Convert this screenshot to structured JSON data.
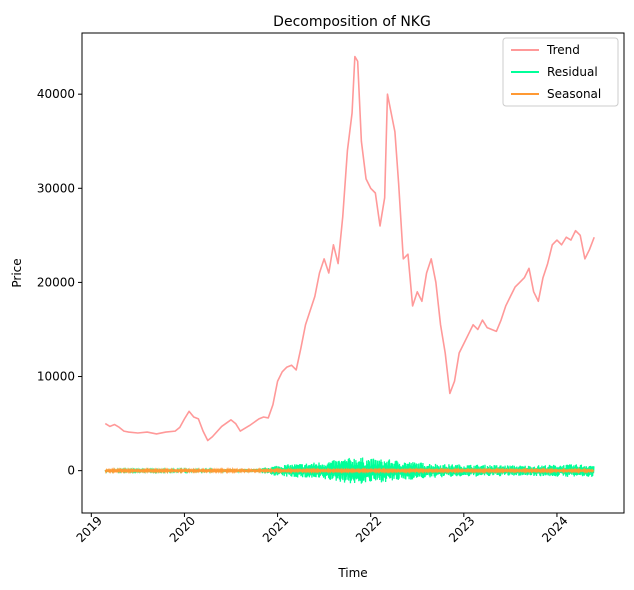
{
  "chart_data": {
    "type": "line",
    "title": "Decomposition of NKG",
    "xlabel": "Time",
    "ylabel": "Price",
    "xlim": [
      2018.9,
      2024.72
    ],
    "ylim": [
      -4500,
      46500
    ],
    "x_ticks": [
      2019,
      2020,
      2021,
      2022,
      2023,
      2024
    ],
    "y_ticks": [
      0,
      10000,
      20000,
      30000,
      40000
    ],
    "grid": false,
    "legend_position": "top-right",
    "series": [
      {
        "name": "Trend",
        "color": "#ff9999",
        "kind": "line",
        "x": [
          2019.15,
          2019.2,
          2019.25,
          2019.3,
          2019.35,
          2019.4,
          2019.5,
          2019.6,
          2019.7,
          2019.8,
          2019.9,
          2019.95,
          2020.0,
          2020.05,
          2020.1,
          2020.15,
          2020.2,
          2020.25,
          2020.3,
          2020.4,
          2020.5,
          2020.55,
          2020.6,
          2020.7,
          2020.8,
          2020.85,
          2020.9,
          2020.95,
          2021.0,
          2021.05,
          2021.1,
          2021.15,
          2021.2,
          2021.25,
          2021.3,
          2021.35,
          2021.4,
          2021.45,
          2021.5,
          2021.55,
          2021.6,
          2021.65,
          2021.7,
          2021.75,
          2021.8,
          2021.83,
          2021.86,
          2021.9,
          2021.95,
          2022.0,
          2022.05,
          2022.1,
          2022.15,
          2022.18,
          2022.22,
          2022.26,
          2022.3,
          2022.35,
          2022.4,
          2022.45,
          2022.5,
          2022.55,
          2022.6,
          2022.65,
          2022.7,
          2022.75,
          2022.8,
          2022.85,
          2022.9,
          2022.95,
          2023.0,
          2023.05,
          2023.1,
          2023.15,
          2023.2,
          2023.25,
          2023.3,
          2023.35,
          2023.4,
          2023.45,
          2023.5,
          2023.55,
          2023.6,
          2023.65,
          2023.7,
          2023.75,
          2023.8,
          2023.85,
          2023.9,
          2023.95,
          2024.0,
          2024.05,
          2024.1,
          2024.15,
          2024.2,
          2024.25,
          2024.3,
          2024.35,
          2024.4
        ],
        "y": [
          5000,
          4700,
          4900,
          4600,
          4200,
          4100,
          4000,
          4100,
          3900,
          4100,
          4200,
          4600,
          5500,
          6300,
          5700,
          5500,
          4200,
          3200,
          3600,
          4700,
          5400,
          5000,
          4200,
          4800,
          5500,
          5700,
          5600,
          7000,
          9500,
          10500,
          11000,
          11200,
          10700,
          13000,
          15500,
          17000,
          18500,
          21000,
          22500,
          21000,
          24000,
          22000,
          27000,
          34000,
          38000,
          44000,
          43500,
          35000,
          31000,
          30000,
          29500,
          26000,
          29000,
          40000,
          38000,
          36000,
          30500,
          22500,
          23000,
          17500,
          19000,
          18000,
          21000,
          22500,
          20000,
          15500,
          12500,
          8200,
          9500,
          12500,
          13500,
          14500,
          15500,
          15000,
          16000,
          15200,
          15000,
          14800,
          16000,
          17500,
          18500,
          19500,
          20000,
          20500,
          21500,
          19000,
          18000,
          20500,
          22000,
          24000,
          24500,
          24000,
          24800,
          24500,
          25500,
          25000,
          22500,
          23500,
          24800
        ]
      },
      {
        "name": "Residual",
        "color": "#00ff99",
        "kind": "noise-band",
        "x": [
          2019.15,
          2019.5,
          2019.9,
          2020.3,
          2020.8,
          2021.0,
          2021.3,
          2021.6,
          2021.85,
          2022.0,
          2022.2,
          2022.5,
          2022.8,
          2023.1,
          2023.4,
          2023.7,
          2024.0,
          2024.4
        ],
        "y": [
          150,
          100,
          120,
          150,
          200,
          600,
          800,
          1100,
          1500,
          1300,
          1200,
          900,
          700,
          650,
          600,
          550,
          650,
          700
        ]
      },
      {
        "name": "Seasonal",
        "color": "#ff9933",
        "kind": "noise-band",
        "x": [
          2019.15,
          2024.4
        ],
        "y": [
          120,
          120
        ]
      }
    ]
  }
}
